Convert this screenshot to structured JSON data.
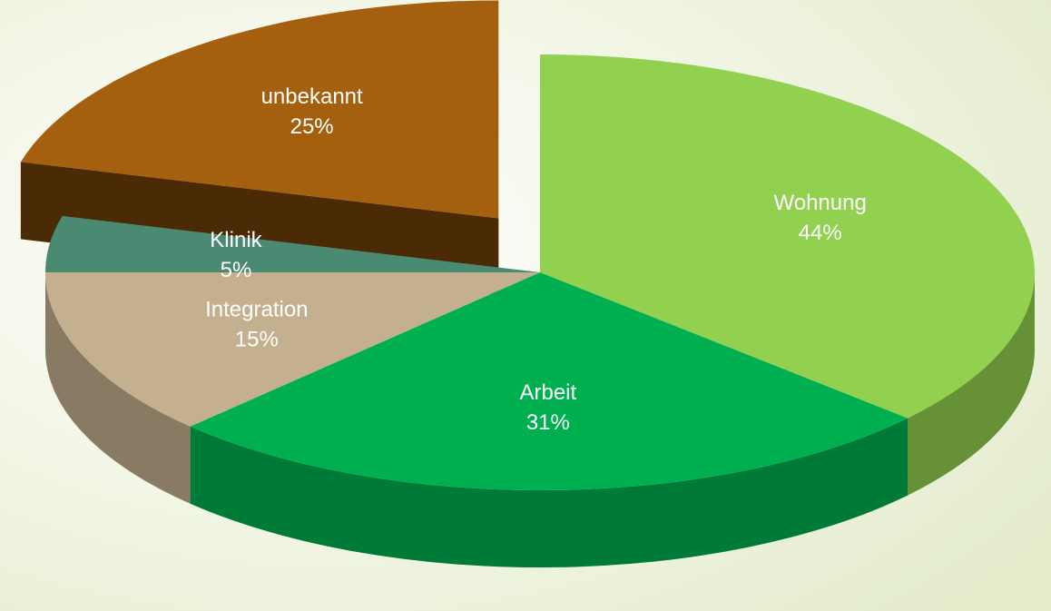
{
  "chart_data": {
    "type": "pie",
    "categories": [
      "Wohnung",
      "Arbeit",
      "Integration",
      "Klinik",
      "unbekannt"
    ],
    "values": [
      44,
      31,
      15,
      5,
      25
    ],
    "value_labels": [
      "44%",
      "31%",
      "15%",
      "5%",
      "25%"
    ],
    "colors": [
      "#92d050",
      "#00b050",
      "#c4b08f",
      "#4a8a72",
      "#a5600f"
    ]
  }
}
